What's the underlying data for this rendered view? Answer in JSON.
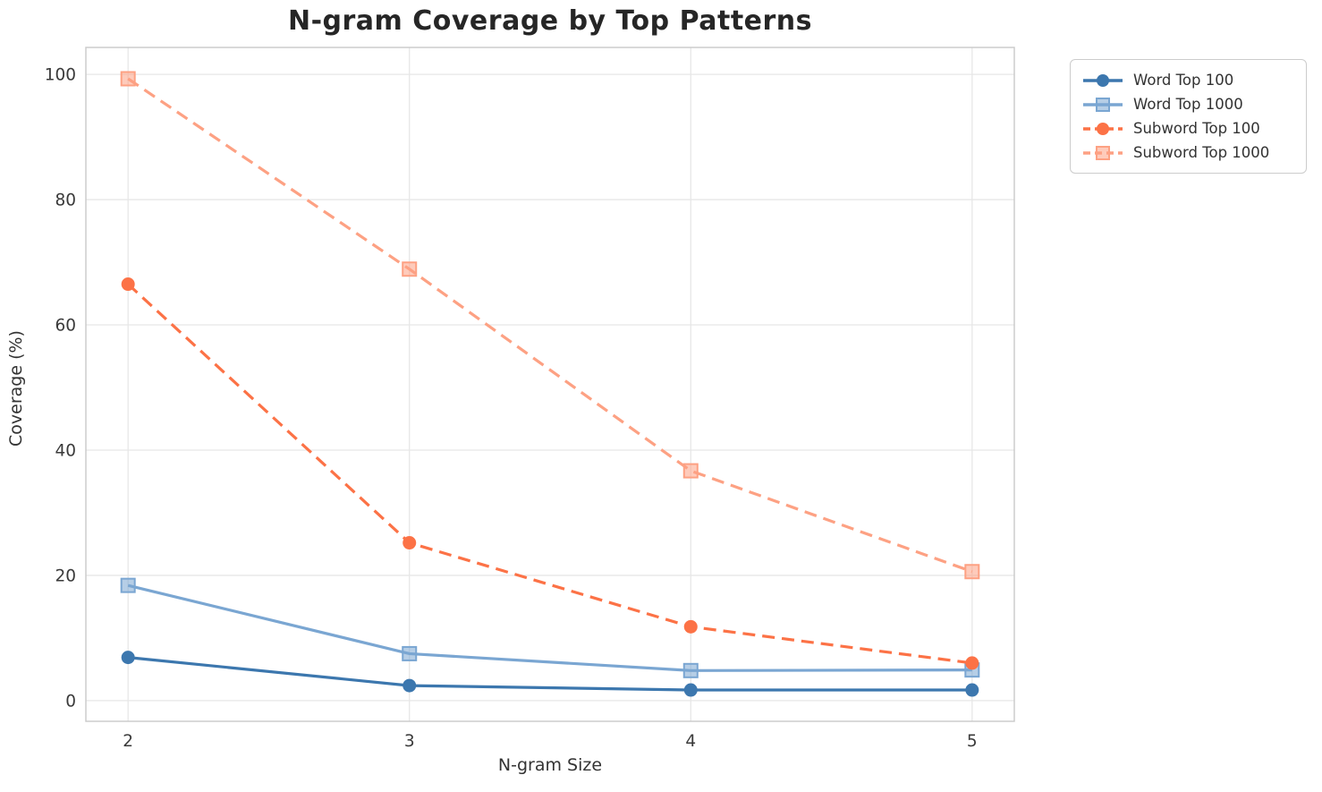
{
  "chart_data": {
    "type": "line",
    "title": "N-gram Coverage by Top Patterns",
    "xlabel": "N-gram Size",
    "ylabel": "Coverage (%)",
    "x": [
      2,
      3,
      4,
      5
    ],
    "xticks": [
      2,
      3,
      4,
      5
    ],
    "yticks": [
      0,
      20,
      40,
      60,
      80,
      100
    ],
    "xlim": [
      1.85,
      5.15
    ],
    "ylim": [
      -3.3,
      104.3
    ],
    "grid": true,
    "legend_position": "outside-top-right",
    "series": [
      {
        "name": "Word Top 100",
        "values": [
          6.9,
          2.4,
          1.7,
          1.7
        ],
        "color": "#3c77ae",
        "marker": "circle",
        "dash": false
      },
      {
        "name": "Word Top 1000",
        "values": [
          18.4,
          7.5,
          4.8,
          4.9
        ],
        "color": "#7aa6d2",
        "marker": "square",
        "dash": false
      },
      {
        "name": "Subword Top 100",
        "values": [
          66.5,
          25.2,
          11.8,
          6.0
        ],
        "color": "#fc7246",
        "marker": "circle",
        "dash": true
      },
      {
        "name": "Subword Top 1000",
        "values": [
          99.3,
          68.9,
          36.7,
          20.6
        ],
        "color": "#fda183",
        "marker": "square",
        "dash": true
      }
    ],
    "colors": {
      "grid": "#e7e7e7",
      "spine": "#c9c9c9",
      "tick_label": "#3a3a3a",
      "title": "#262626",
      "axis_label": "#333333",
      "legend_border": "#cccccc",
      "background": "#ffffff"
    }
  }
}
